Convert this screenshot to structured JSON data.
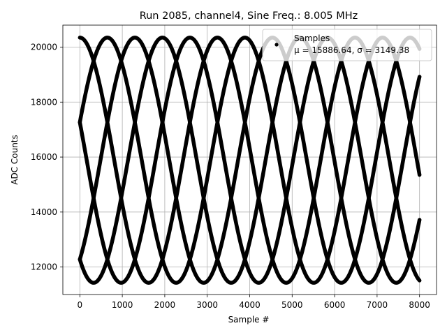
{
  "chart_data": {
    "type": "scatter",
    "title": "Run 2085, channel4, Sine Freq.: 8.005 MHz",
    "xlabel": "Sample #",
    "ylabel": "ADC Counts",
    "xlim": [
      -400,
      8400
    ],
    "ylim": [
      11000,
      20800
    ],
    "xticks": [
      0,
      1000,
      2000,
      3000,
      4000,
      5000,
      6000,
      7000,
      8000
    ],
    "yticks": [
      12000,
      14000,
      16000,
      18000,
      20000
    ],
    "grid": true,
    "legend": {
      "placement": "top-right",
      "entries": [
        {
          "label": "Samples",
          "stat": "μ = 15886.64, σ = 3149.38"
        }
      ]
    },
    "series": [
      {
        "name": "Samples",
        "color": "#000000",
        "model": "sine-phase-bands",
        "mean": 15886.64,
        "amplitude": 4460,
        "period_samples": 3240,
        "x_range": [
          0,
          8000
        ],
        "phases_deg": [
          90,
          18,
          -54,
          -126,
          162
        ]
      }
    ]
  }
}
